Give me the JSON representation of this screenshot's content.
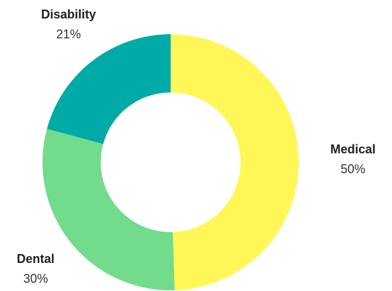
{
  "chart_data": {
    "type": "pie",
    "variant": "donut",
    "title": "",
    "legend": "none",
    "slices": [
      {
        "label": "Medical",
        "value": 50,
        "display": "50%",
        "color": "#fff757"
      },
      {
        "label": "Dental",
        "value": 30,
        "display": "30%",
        "color": "#73db8c"
      },
      {
        "label": "Disability",
        "value": 21,
        "display": "21%",
        "color": "#00aaa6"
      }
    ]
  }
}
